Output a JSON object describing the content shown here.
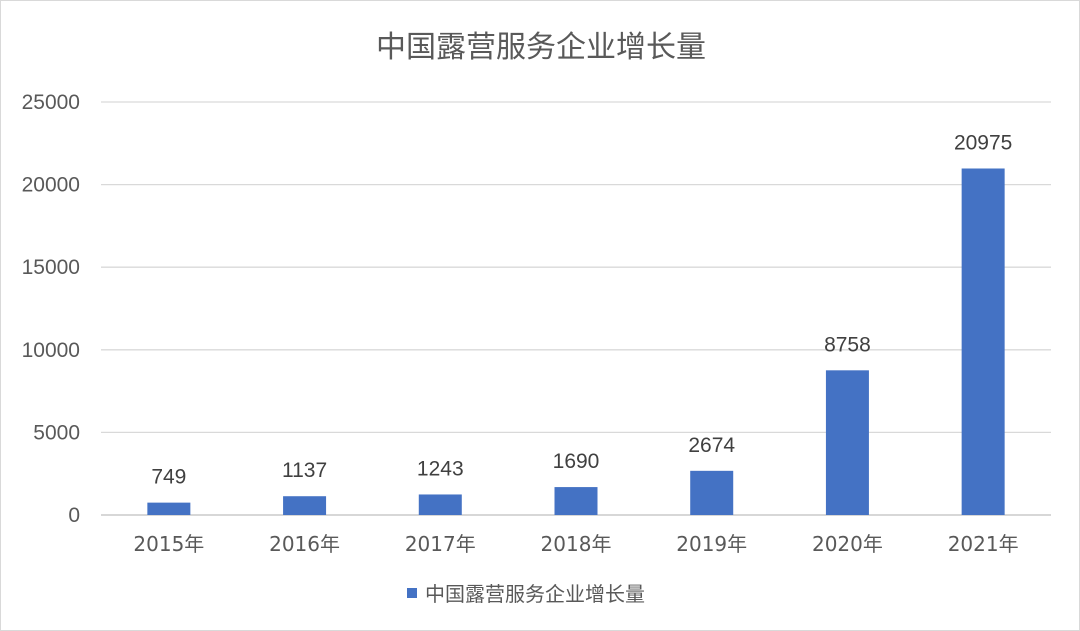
{
  "chart_data": {
    "type": "bar",
    "title": "中国露营服务企业增长量",
    "categories": [
      "2015年",
      "2016年",
      "2017年",
      "2018年",
      "2019年",
      "2020年",
      "2021年"
    ],
    "series": [
      {
        "name": "中国露营服务企业增长量",
        "values": [
          749,
          1137,
          1243,
          1690,
          2674,
          8758,
          20975
        ],
        "color": "#4472c4"
      }
    ],
    "ylim": [
      0,
      25000
    ],
    "yticks": [
      0,
      5000,
      10000,
      15000,
      20000,
      25000
    ],
    "grid": true,
    "data_labels": true,
    "legend_position": "bottom"
  }
}
